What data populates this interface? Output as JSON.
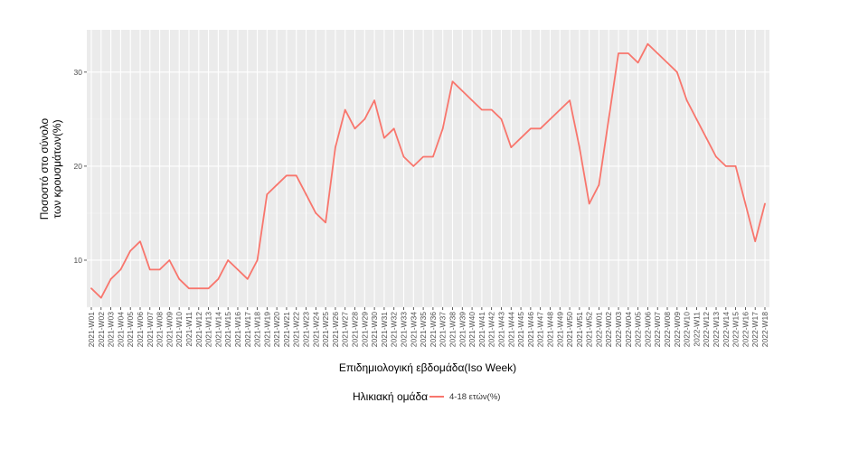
{
  "chart_data": {
    "type": "line",
    "xlabel": "Επιδημιολογική εβδομάδα(Iso Week)",
    "ylabel_line1": "Ποσοστό στο σύνολο",
    "ylabel_line2": "των κρουσμάτων(%)",
    "ylim": [
      5,
      34.5
    ],
    "yticks": [
      10,
      20,
      30
    ],
    "grid": true,
    "legend_position": "bottom",
    "legend_title": "Ηλικιακή ομάδα",
    "categories": [
      "2021-W01",
      "2021-W02",
      "2021-W03",
      "2021-W04",
      "2021-W05",
      "2021-W06",
      "2021-W07",
      "2021-W08",
      "2021-W09",
      "2021-W10",
      "2021-W11",
      "2021-W12",
      "2021-W13",
      "2021-W14",
      "2021-W15",
      "2021-W16",
      "2021-W17",
      "2021-W18",
      "2021-W19",
      "2021-W20",
      "2021-W21",
      "2021-W22",
      "2021-W23",
      "2021-W24",
      "2021-W25",
      "2021-W26",
      "2021-W27",
      "2021-W28",
      "2021-W29",
      "2021-W30",
      "2021-W31",
      "2021-W32",
      "2021-W33",
      "2021-W34",
      "2021-W35",
      "2021-W36",
      "2021-W37",
      "2021-W38",
      "2021-W39",
      "2021-W40",
      "2021-W41",
      "2021-W42",
      "2021-W43",
      "2021-W44",
      "2021-W45",
      "2021-W46",
      "2021-W47",
      "2021-W48",
      "2021-W49",
      "2021-W50",
      "2021-W51",
      "2021-W52",
      "2022-W01",
      "2022-W02",
      "2022-W03",
      "2022-W04",
      "2022-W05",
      "2022-W06",
      "2022-W07",
      "2022-W08",
      "2022-W09",
      "2022-W10",
      "2022-W11",
      "2022-W12",
      "2022-W13",
      "2022-W14",
      "2022-W15",
      "2022-W16",
      "2022-W17",
      "2022-W18"
    ],
    "series": [
      {
        "name": "4-18 ετών(%)",
        "color": "#F8766D",
        "values": [
          7,
          6,
          8,
          9,
          11,
          12,
          9,
          9,
          10,
          8,
          7,
          7,
          7,
          8,
          10,
          9,
          8,
          10,
          17,
          18,
          19,
          19,
          17,
          15,
          14,
          22,
          26,
          24,
          25,
          27,
          23,
          24,
          21,
          20,
          21,
          21,
          24,
          29,
          28,
          27,
          26,
          26,
          25,
          22,
          23,
          24,
          24,
          25,
          26,
          27,
          22,
          16,
          18,
          25,
          32,
          32,
          31,
          33,
          32,
          31,
          30,
          27,
          25,
          23,
          21,
          20,
          20,
          16,
          12,
          16
        ]
      }
    ]
  }
}
